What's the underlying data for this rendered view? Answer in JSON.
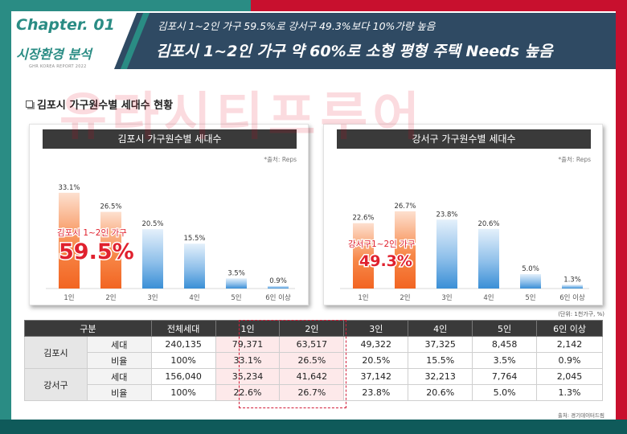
{
  "header": {
    "chapter_label": "Chapter. 01",
    "chapter_sub": "시장환경 분석",
    "report_tag": "GHR KOREA REPORT 2022",
    "subtitle": "김포시 1~2인 가구 59.5%로 강서구 49.3%보다 10%가량 높음",
    "title": "김포시 1~2인 가구 약 60%로 소형 평형 주택 Needs 높음"
  },
  "section": {
    "title": "김포시 가구원수별 세대수 현황"
  },
  "watermark": {
    "text": "유라시티프루어"
  },
  "colors": {
    "accent_teal": "#2a8c84",
    "accent_red": "#c8102e",
    "highlight_orange": "#f26522",
    "bar_blue": "#3a8fd6",
    "callout_red": "#e0212e"
  },
  "chart_data": [
    {
      "type": "bar",
      "title": "김포시 가구원수별 세대수",
      "source": "*출처: Reps",
      "categories": [
        "1인",
        "2인",
        "3인",
        "4인",
        "5인",
        "6인 이상"
      ],
      "values": [
        33.1,
        26.5,
        20.5,
        15.5,
        3.5,
        0.9
      ],
      "value_labels": [
        "33.1%",
        "26.5%",
        "20.5%",
        "15.5%",
        "3.5%",
        "0.9%"
      ],
      "highlight_categories": [
        "1인",
        "2인"
      ],
      "ylim": [
        0,
        40
      ],
      "grid": false,
      "callout": {
        "label": "김포시 1~2인 가구",
        "value": "59.5%"
      }
    },
    {
      "type": "bar",
      "title": "강서구 가구원수별 세대수",
      "source": "*출처: Reps",
      "categories": [
        "1인",
        "2인",
        "3인",
        "4인",
        "5인",
        "6인 이상"
      ],
      "values": [
        22.6,
        26.7,
        23.8,
        20.6,
        5.0,
        1.3
      ],
      "value_labels": [
        "22.6%",
        "26.7%",
        "23.8%",
        "20.6%",
        "5.0%",
        "1.3%"
      ],
      "highlight_categories": [
        "1인",
        "2인"
      ],
      "ylim": [
        0,
        40
      ],
      "grid": false,
      "callout": {
        "label": "강서구1~2인 가구",
        "value": "49.3%"
      }
    },
    {
      "type": "table",
      "unit_note": "(단위: 1천가구, %)",
      "source": "출처: 경기데이터드림",
      "headers": [
        "구분",
        "",
        "전체세대",
        "1인",
        "2인",
        "3인",
        "4인",
        "5인",
        "6인 이상"
      ],
      "rows": [
        {
          "region": "김포시",
          "metric": "세대",
          "values": [
            "240,135",
            "79,371",
            "63,517",
            "49,322",
            "37,325",
            "8,458",
            "2,142"
          ]
        },
        {
          "region": "김포시",
          "metric": "비율",
          "values": [
            "100%",
            "33.1%",
            "26.5%",
            "20.5%",
            "15.5%",
            "3.5%",
            "0.9%"
          ]
        },
        {
          "region": "강서구",
          "metric": "세대",
          "values": [
            "156,040",
            "35,234",
            "41,642",
            "37,142",
            "32,213",
            "7,764",
            "2,045"
          ]
        },
        {
          "region": "강서구",
          "metric": "비율",
          "values": [
            "100%",
            "22.6%",
            "26.7%",
            "23.8%",
            "20.6%",
            "5.0%",
            "1.3%"
          ]
        }
      ]
    }
  ]
}
